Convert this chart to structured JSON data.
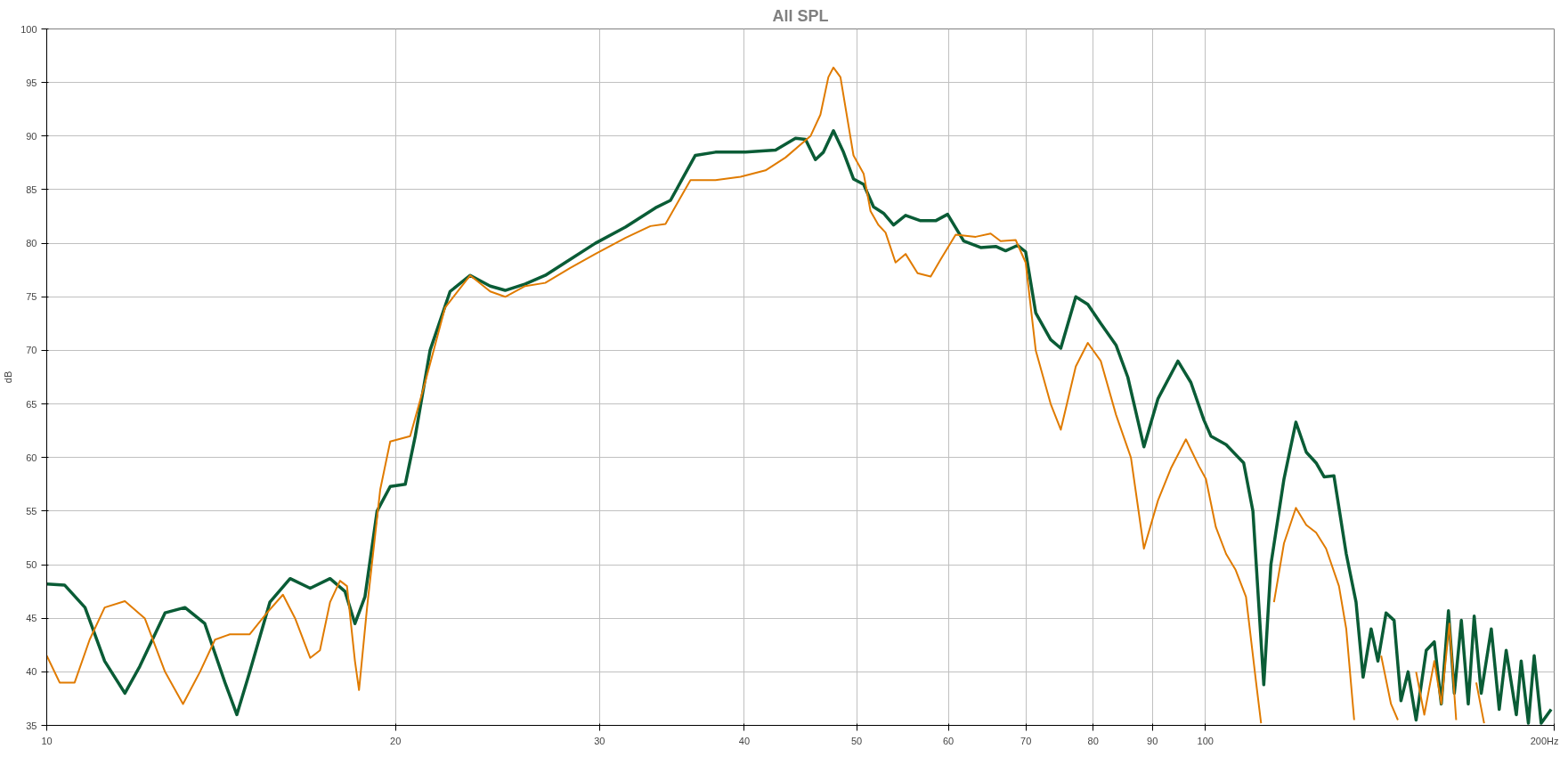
{
  "chart_data": {
    "type": "line",
    "title": "All SPL",
    "ylabel": "dB",
    "log": "x",
    "grid": true,
    "line_style": "solid",
    "xlim": [
      10,
      200
    ],
    "ylim": [
      35,
      100
    ],
    "xticks": [
      10,
      20,
      30,
      40,
      50,
      60,
      70,
      80,
      90,
      100,
      {
        "value": 200,
        "label": "200Hz"
      }
    ],
    "yticks": [
      35,
      40,
      45,
      50,
      55,
      60,
      65,
      70,
      75,
      80,
      85,
      90,
      95,
      100
    ],
    "series": [
      {
        "color": "#0a5c36",
        "x": [
          10,
          10.36,
          10.79,
          11.22,
          11.68,
          12.03,
          12.65,
          13.16,
          13.69,
          14.25,
          14.59,
          14.97,
          15.58,
          16.22,
          16.88,
          17.56,
          18.09,
          18.45,
          18.82,
          19.28,
          19.79,
          20.39,
          20.8,
          21.42,
          22.29,
          23.2,
          24.14,
          24.87,
          25.88,
          26.93,
          28.3,
          29.75,
          31.58,
          33.52,
          34.54,
          36.29,
          37.77,
          40.09,
          42.56,
          44.28,
          45.17,
          46.07,
          46.81,
          47.75,
          48.71,
          49.69,
          50.7,
          51.71,
          52.75,
          53.81,
          55.11,
          56.78,
          58.5,
          59.91,
          61.86,
          63.98,
          65.92,
          67.23,
          68.86,
          69.96,
          71.38,
          73.53,
          75.02,
          77.29,
          79.16,
          81.23,
          83.72,
          85.71,
          88.5,
          91.01,
          94.68,
          97.16,
          99.7,
          101.1,
          104.2,
          107.9,
          109.9,
          112.3,
          113.9,
          116.9,
          119.7,
          122.2,
          124.6,
          126.6,
          129.1,
          132.3,
          134.9,
          136.8,
          139,
          140.9,
          143.2,
          145.5,
          147.5,
          149.6,
          152,
          155.1,
          157.6,
          159.8,
          162.1,
          164,
          166.3,
          168.6,
          170.6,
          173,
          176.5,
          179.3,
          181.8,
          185.5,
          187.3,
          190,
          192.2,
          194.9,
          198.8
        ],
        "values": [
          48.2,
          48.1,
          46,
          41,
          38,
          40.5,
          45.5,
          46,
          44.5,
          39,
          36,
          40,
          46.5,
          48.7,
          47.8,
          48.7,
          47.5,
          44.5,
          47,
          55,
          57.3,
          57.5,
          62,
          70,
          75.5,
          77,
          76,
          75.6,
          76.2,
          77,
          78.5,
          80,
          81.5,
          83.3,
          84,
          88.2,
          88.5,
          88.5,
          88.7,
          89.8,
          89.7,
          87.8,
          88.5,
          90.5,
          88.5,
          86,
          85.5,
          83.4,
          82.8,
          81.7,
          82.6,
          82.1,
          82.1,
          82.7,
          80.2,
          79.6,
          79.7,
          79.3,
          79.8,
          79.2,
          73.5,
          71,
          70.2,
          75,
          74.3,
          72.5,
          70.5,
          67.5,
          61,
          65.5,
          69,
          67,
          63.5,
          62,
          61.2,
          59.5,
          55,
          38.8,
          50,
          58,
          63.3,
          60.5,
          59.5,
          58.2,
          58.3,
          51,
          46.5,
          39.5,
          44,
          41,
          45.5,
          44.8,
          37.3,
          40,
          35.5,
          42,
          42.8,
          37,
          45.7,
          38,
          44.8,
          37,
          45.2,
          38,
          44,
          36.5,
          42,
          36,
          41,
          35.2,
          41.5,
          35.2,
          36.5
        ]
      },
      {
        "color": "#e07b00",
        "x": [
          10,
          10.26,
          10.57,
          10.89,
          11.22,
          11.68,
          12.15,
          12.65,
          13.11,
          13.56,
          13.97,
          14.39,
          14.97,
          15.49,
          15.99,
          16.38,
          16.88,
          17.21,
          17.56,
          17.91,
          18.16,
          18.45,
          18.6,
          18.9,
          19.4,
          19.79,
          20.59,
          21.21,
          22.07,
          23.2,
          24.14,
          24.87,
          25.88,
          26.93,
          28.3,
          29.75,
          31.58,
          33.19,
          34.2,
          35.94,
          37.77,
          39.7,
          41.72,
          43.41,
          45.62,
          46.53,
          47.27,
          47.75,
          48.42,
          49.69,
          50.7,
          51.4,
          52.22,
          52.96,
          54.02,
          55.11,
          56.44,
          57.93,
          59.09,
          60.88,
          63.35,
          65.26,
          66.57,
          68.59,
          69.96,
          71.38,
          73.53,
          75.02,
          77.29,
          79.16,
          81.23,
          83.72,
          86.24,
          88.5,
          91.01,
          93.38,
          96.2,
          98.72,
          100.1,
          102.1,
          104.2,
          106.2,
          108.4,
          110.6,
          111.7,
          113.5,
          114.6,
          116.9,
          119.7,
          122.2,
          124.6,
          127.1,
          130.4,
          132.3,
          134.4,
          136.2,
          141.8,
          144.6,
          146.6,
          149,
          152,
          154.5,
          157.6,
          159.8,
          162.4,
          164.6,
          167.9,
          171.3,
          174
        ],
        "values": [
          41.5,
          39,
          39,
          43,
          46,
          46.6,
          45,
          40,
          37,
          40,
          43,
          43.5,
          43.5,
          45.5,
          47.2,
          45,
          41.3,
          42,
          46.5,
          48.5,
          48,
          41,
          38.3,
          46,
          57,
          61.5,
          62,
          67,
          74,
          77,
          75.5,
          75,
          76,
          76.3,
          77.7,
          79,
          80.5,
          81.6,
          81.8,
          85.9,
          85.9,
          86.2,
          86.8,
          88,
          90,
          92,
          95.5,
          96.4,
          95.5,
          88.2,
          86.5,
          83,
          81.7,
          81,
          78.2,
          79,
          77.2,
          76.9,
          78.5,
          80.8,
          80.6,
          80.9,
          80.2,
          80.3,
          78.2,
          70,
          65,
          62.6,
          68.5,
          70.7,
          69,
          64,
          60,
          51.5,
          56,
          59,
          61.7,
          59.2,
          58,
          53.5,
          51,
          49.5,
          47,
          39,
          35.2,
          null,
          46.5,
          52,
          55.3,
          53.7,
          53,
          51.5,
          48,
          44,
          35.5,
          null,
          41.5,
          37,
          35.5,
          null,
          40,
          36,
          41,
          37,
          44.5,
          35.5,
          null,
          39,
          35.2
        ]
      }
    ]
  }
}
